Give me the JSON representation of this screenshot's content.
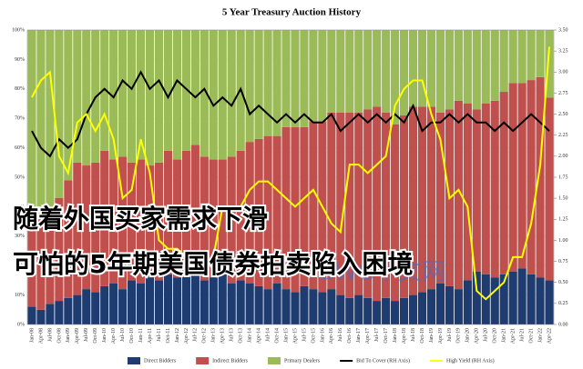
{
  "chart_data": {
    "type": "bar",
    "stacked": true,
    "title": "5 Year Treasury Auction History",
    "annotations": [
      "随着外国买家需求下滑",
      "可怕的5年期美国债券拍卖陷入困境"
    ],
    "watermark": "BWC中文网",
    "categories": [
      "Jan-08",
      "Apr-08",
      "Jul-08",
      "Oct-08",
      "Jan-09",
      "Apr-09",
      "Jul-09",
      "Oct-09",
      "Jan-10",
      "Apr-10",
      "Jul-10",
      "Oct-10",
      "Jan-11",
      "Apr-11",
      "Jul-11",
      "Oct-11",
      "Jan-12",
      "Apr-12",
      "Jul-12",
      "Oct-12",
      "Jan-13",
      "Apr-13",
      "Jul-13",
      "Oct-13",
      "Jan-14",
      "Apr-14",
      "Jul-14",
      "Oct-14",
      "Jan-15",
      "Apr-15",
      "Jul-15",
      "Oct-15",
      "Jan-16",
      "Apr-16",
      "Jul-16",
      "Oct-16",
      "Jan-17",
      "Apr-17",
      "Jul-17",
      "Oct-17",
      "Jan-18",
      "Apr-18",
      "Jul-18",
      "Oct-18",
      "Jan-19",
      "Apr-19",
      "Jul-19",
      "Oct-19",
      "Jan-20",
      "Apr-20",
      "Jul-20",
      "Oct-20",
      "Jan-21",
      "Apr-21",
      "Jul-21",
      "Oct-21",
      "Jan-22",
      "Apr-22"
    ],
    "series": [
      {
        "name": "Direct Bidders",
        "color": "#1f3c70",
        "values": [
          6,
          5,
          7,
          8,
          9,
          10,
          12,
          11,
          13,
          14,
          12,
          15,
          14,
          16,
          15,
          17,
          16,
          18,
          17,
          15,
          16,
          17,
          14,
          15,
          14,
          13,
          12,
          14,
          12,
          11,
          13,
          12,
          11,
          12,
          10,
          9,
          10,
          9,
          8,
          9,
          8,
          9,
          10,
          11,
          12,
          14,
          13,
          12,
          15,
          18,
          17,
          16,
          17,
          18,
          19,
          17,
          16,
          15
        ]
      },
      {
        "name": "Indirect Bidders",
        "color": "#c0504d",
        "values": [
          28,
          32,
          30,
          35,
          40,
          45,
          42,
          44,
          46,
          42,
          45,
          40,
          42,
          38,
          40,
          42,
          40,
          41,
          44,
          42,
          40,
          39,
          43,
          44,
          48,
          50,
          52,
          50,
          55,
          56,
          54,
          57,
          58,
          60,
          62,
          63,
          62,
          64,
          66,
          63,
          60,
          62,
          64,
          63,
          62,
          58,
          60,
          64,
          60,
          55,
          58,
          60,
          62,
          64,
          63,
          66,
          68,
          62
        ]
      },
      {
        "name": "Primary Dealers",
        "color": "#9bbb59",
        "values": [
          66,
          63,
          63,
          57,
          51,
          45,
          46,
          45,
          41,
          44,
          43,
          45,
          44,
          46,
          45,
          41,
          44,
          41,
          39,
          43,
          44,
          44,
          43,
          41,
          38,
          37,
          36,
          36,
          33,
          33,
          33,
          31,
          31,
          28,
          28,
          28,
          28,
          27,
          26,
          28,
          32,
          29,
          26,
          26,
          26,
          28,
          27,
          24,
          25,
          27,
          25,
          24,
          21,
          18,
          18,
          17,
          16,
          23
        ]
      },
      {
        "name": "Bid To Cover (RH Axis)",
        "color": "#000000",
        "type": "line",
        "axis": "y2",
        "values": [
          2.3,
          2.1,
          2.0,
          2.2,
          2.1,
          2.2,
          2.5,
          2.7,
          2.8,
          2.7,
          2.9,
          2.8,
          3.0,
          2.8,
          2.9,
          2.7,
          2.9,
          2.8,
          2.7,
          2.8,
          2.6,
          2.7,
          2.6,
          2.8,
          2.5,
          2.6,
          2.5,
          2.4,
          2.5,
          2.4,
          2.5,
          2.4,
          2.4,
          2.5,
          2.3,
          2.4,
          2.5,
          2.4,
          2.5,
          2.4,
          2.5,
          2.4,
          2.6,
          2.3,
          2.4,
          2.4,
          2.5,
          2.4,
          2.5,
          2.4,
          2.4,
          2.3,
          2.4,
          2.3,
          2.4,
          2.5,
          2.4,
          2.3
        ]
      },
      {
        "name": "High Yield (RH Axis)",
        "color": "#ffff00",
        "type": "line",
        "axis": "y2",
        "values": [
          2.7,
          2.9,
          3.0,
          2.0,
          1.8,
          2.4,
          2.5,
          2.3,
          2.5,
          2.2,
          1.5,
          1.6,
          2.2,
          1.8,
          1.0,
          0.9,
          0.9,
          0.8,
          0.7,
          0.7,
          0.8,
          1.4,
          1.4,
          1.4,
          1.6,
          1.7,
          1.7,
          1.6,
          1.5,
          1.4,
          1.5,
          1.6,
          1.4,
          1.2,
          1.1,
          1.9,
          1.9,
          1.8,
          1.9,
          2.0,
          2.6,
          2.8,
          2.9,
          2.9,
          2.5,
          2.2,
          1.5,
          1.6,
          1.4,
          0.4,
          0.3,
          0.4,
          0.5,
          0.8,
          0.8,
          1.2,
          1.9,
          3.3
        ]
      }
    ],
    "ylim": [
      0,
      100
    ],
    "yticks": [
      {
        "value": 0,
        "label": "0%"
      },
      {
        "value": 10,
        "label": "10%"
      },
      {
        "value": 20,
        "label": "20%"
      },
      {
        "value": 30,
        "label": "30%"
      },
      {
        "value": 40,
        "label": "40%"
      },
      {
        "value": 50,
        "label": "50%"
      },
      {
        "value": 60,
        "label": "60%"
      },
      {
        "value": 70,
        "label": "70%"
      },
      {
        "value": 80,
        "label": "80%"
      },
      {
        "value": 90,
        "label": "90%"
      },
      {
        "value": 100,
        "label": "100%"
      }
    ],
    "y2lim": [
      0,
      3.5
    ],
    "y2ticks": [
      {
        "value": 0,
        "label": "0.00"
      },
      {
        "value": 0.25,
        "label": "0.25"
      },
      {
        "value": 0.5,
        "label": "0.50"
      },
      {
        "value": 0.75,
        "label": "0.75"
      },
      {
        "value": 1,
        "label": "1.00"
      },
      {
        "value": 1.25,
        "label": "1.25"
      },
      {
        "value": 1.5,
        "label": "1.50"
      },
      {
        "value": 1.75,
        "label": "1.75"
      },
      {
        "value": 2,
        "label": "2.00"
      },
      {
        "value": 2.25,
        "label": "2.25"
      },
      {
        "value": 2.5,
        "label": "2.50"
      },
      {
        "value": 2.75,
        "label": "2.75"
      },
      {
        "value": 3,
        "label": "3.00"
      },
      {
        "value": 3.25,
        "label": "3.25"
      },
      {
        "value": 3.5,
        "label": "3.50"
      }
    ],
    "grid": true,
    "legend": "bottom"
  }
}
